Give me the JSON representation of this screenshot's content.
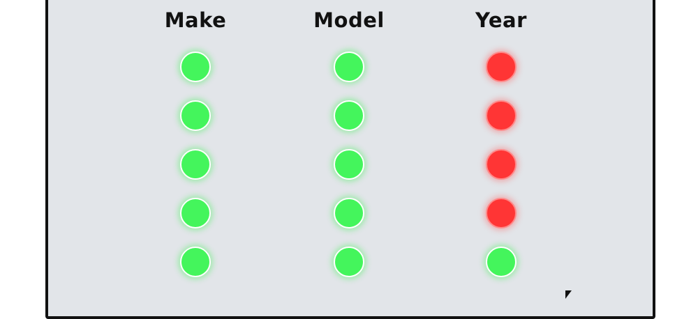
{
  "columns": [
    {
      "label": "Make",
      "statuses": [
        "match",
        "match",
        "match",
        "match",
        "match"
      ]
    },
    {
      "label": "Model",
      "statuses": [
        "match",
        "match",
        "match",
        "match",
        "match"
      ]
    },
    {
      "label": "Year",
      "statuses": [
        "mismatch",
        "mismatch",
        "mismatch",
        "mismatch",
        "match"
      ]
    }
  ],
  "colors": {
    "match": "#44f55c",
    "mismatch": "#ff3535",
    "panel": "#e2e5e9"
  }
}
